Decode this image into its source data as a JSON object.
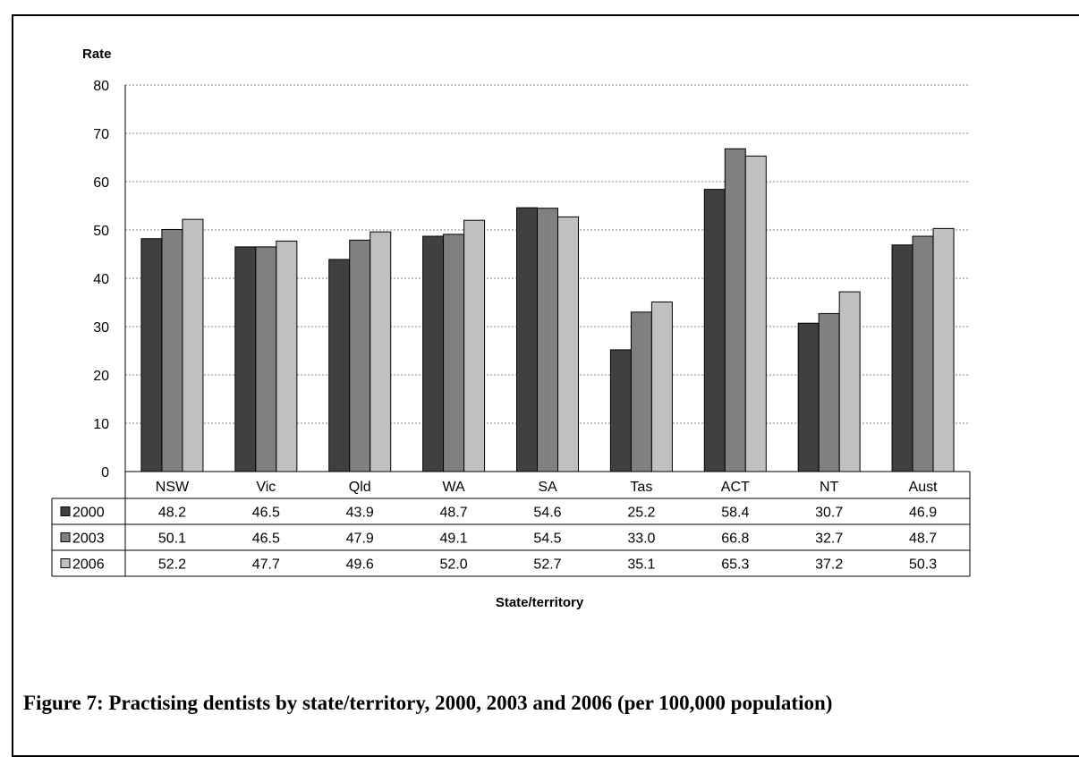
{
  "chart_data": {
    "type": "bar",
    "ylabel": "Rate",
    "xlabel": "State/territory",
    "ylim": [
      0,
      80
    ],
    "yticks": [
      0,
      10,
      20,
      30,
      40,
      50,
      60,
      70,
      80
    ],
    "grid": true,
    "categories": [
      "NSW",
      "Vic",
      "Qld",
      "WA",
      "SA",
      "Tas",
      "ACT",
      "NT",
      "Aust"
    ],
    "series": [
      {
        "name": "2000",
        "color": "#404040",
        "values": [
          48.2,
          46.5,
          43.9,
          48.7,
          54.6,
          25.2,
          58.4,
          30.7,
          46.9
        ],
        "labels": [
          "48.2",
          "46.5",
          "43.9",
          "48.7",
          "54.6",
          "25.2",
          "58.4",
          "30.7",
          "46.9"
        ]
      },
      {
        "name": "2003",
        "color": "#808080",
        "values": [
          50.1,
          46.5,
          47.9,
          49.1,
          54.5,
          33.0,
          66.8,
          32.7,
          48.7
        ],
        "labels": [
          "50.1",
          "46.5",
          "47.9",
          "49.1",
          "54.5",
          "33.0",
          "66.8",
          "32.7",
          "48.7"
        ]
      },
      {
        "name": "2006",
        "color": "#c0c0c0",
        "values": [
          52.2,
          47.7,
          49.6,
          52.0,
          52.7,
          35.1,
          65.3,
          37.2,
          50.3
        ],
        "labels": [
          "52.2",
          "47.7",
          "49.6",
          "52.0",
          "52.7",
          "35.1",
          "65.3",
          "37.2",
          "50.3"
        ]
      }
    ]
  },
  "caption": "Figure 7: Practising dentists by state/territory, 2000, 2003 and 2006 (per 100,000 population)"
}
